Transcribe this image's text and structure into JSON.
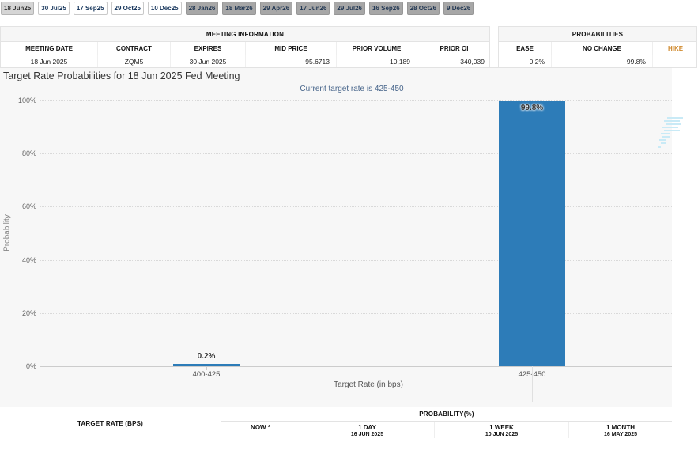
{
  "tabs": [
    {
      "label": "18 Jun25",
      "state": "selected"
    },
    {
      "label": "30 Jul25",
      "state": "near"
    },
    {
      "label": "17 Sep25",
      "state": "near"
    },
    {
      "label": "29 Oct25",
      "state": "near"
    },
    {
      "label": "10 Dec25",
      "state": "near"
    },
    {
      "label": "28 Jan26",
      "state": "far"
    },
    {
      "label": "18 Mar26",
      "state": "far"
    },
    {
      "label": "29 Apr26",
      "state": "far"
    },
    {
      "label": "17 Jun26",
      "state": "far"
    },
    {
      "label": "29 Jul26",
      "state": "far"
    },
    {
      "label": "16 Sep26",
      "state": "far"
    },
    {
      "label": "28 Oct26",
      "state": "far"
    },
    {
      "label": "9 Dec26",
      "state": "far"
    }
  ],
  "meeting_info": {
    "title": "MEETING INFORMATION",
    "columns": [
      "MEETING DATE",
      "CONTRACT",
      "EXPIRES",
      "MID PRICE",
      "PRIOR VOLUME",
      "PRIOR OI"
    ],
    "values": [
      "18 Jun 2025",
      "ZQM5",
      "30 Jun 2025",
      "95.6713",
      "10,189",
      "340,039"
    ]
  },
  "probabilities_summary": {
    "title": "PROBABILITIES",
    "columns": [
      "EASE",
      "NO CHANGE",
      "HIKE"
    ],
    "values": [
      "0.2%",
      "99.8%",
      ""
    ]
  },
  "chart_data": {
    "type": "bar",
    "title": "Target Rate Probabilities for 18 Jun 2025 Fed Meeting",
    "subtitle": "Current target rate is 425-450",
    "categories": [
      "400-425",
      "425-450"
    ],
    "values": [
      0.2,
      99.8
    ],
    "bar_labels": [
      "0.2%",
      "99.8%"
    ],
    "xlabel": "Target Rate (in bps)",
    "ylabel": "Probability",
    "ylim": [
      0,
      100
    ],
    "yticks": [
      "0%",
      "20%",
      "40%",
      "60%",
      "80%",
      "100%"
    ],
    "grid": "horizontal-dotted",
    "legend": "none",
    "bar_color": "#2d7cb8"
  },
  "bottom_table": {
    "target_rate_header": "TARGET RATE (BPS)",
    "probability_header": "PROBABILITY(%)",
    "subcolumns": [
      {
        "label": "NOW *",
        "date": ""
      },
      {
        "label": "1 DAY",
        "date": "16 JUN 2025"
      },
      {
        "label": "1 WEEK",
        "date": "10 JUN 2025"
      },
      {
        "label": "1 MONTH",
        "date": "16 MAY 2025"
      }
    ]
  },
  "colors": {
    "bar": "#2d7cb8",
    "chart_background": "#f7f7f7",
    "subtitle_text": "#46648a",
    "hike_header": "#d08a2e",
    "watermark": "#c9eaf6"
  }
}
